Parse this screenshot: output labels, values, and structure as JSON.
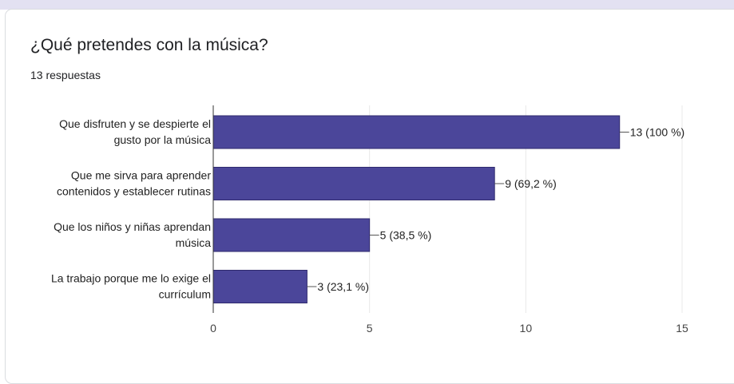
{
  "header": {
    "title": "¿Qué pretendes con la música?",
    "responses": "13 respuestas"
  },
  "chart_data": {
    "type": "bar",
    "orientation": "horizontal",
    "categories": [
      [
        "Que disfruten y se despierte el",
        "gusto por la música"
      ],
      [
        "Que me sirva para aprender",
        "contenidos y establecer rutinas"
      ],
      [
        "Que los niños y niñas aprendan",
        "música"
      ],
      [
        "La trabajo porque me lo exige el",
        "currículum"
      ]
    ],
    "values": [
      13,
      9,
      5,
      3
    ],
    "data_labels": [
      "13 (100 %)",
      "9 (69,2 %)",
      "5 (38,5 %)",
      "3 (23,1 %)"
    ],
    "xlim": [
      0,
      15
    ],
    "xticks": [
      "0",
      "5",
      "10",
      "15"
    ],
    "grid": true,
    "colors": {
      "bar": "#4b469a",
      "bar_edge": "#2f2a6e",
      "grid": "#e8e8e8",
      "axis": "#333333"
    }
  }
}
